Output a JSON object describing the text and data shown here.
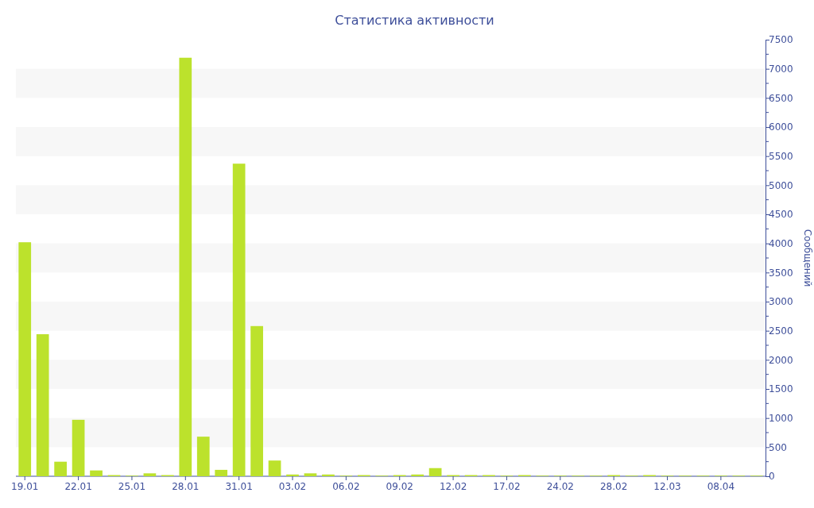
{
  "chart_data": {
    "type": "bar",
    "title": "Статистика активности",
    "y2label": "Сообщений",
    "categories": [
      "19.01",
      null,
      null,
      "22.01",
      null,
      null,
      "25.01",
      null,
      null,
      "28.01",
      null,
      null,
      "31.01",
      null,
      null,
      "03.02",
      null,
      null,
      "06.02",
      null,
      null,
      "09.02",
      null,
      null,
      "12.02",
      null,
      null,
      "17.02",
      null,
      null,
      "24.02",
      null,
      null,
      "28.02",
      null,
      null,
      "12.03",
      null,
      null,
      "08.04",
      null,
      null
    ],
    "series": [
      {
        "color": "#bce22c",
        "axis": "y2",
        "values": [
          4020,
          2440,
          250,
          970,
          100,
          20,
          10,
          50,
          20,
          7190,
          680,
          110,
          5370,
          2580,
          270,
          30,
          50,
          30,
          10,
          20,
          10,
          20,
          30,
          140,
          20,
          20,
          20,
          10,
          20,
          10,
          10,
          10,
          10,
          20,
          10,
          20,
          10,
          10,
          10,
          10,
          10,
          10
        ]
      }
    ],
    "y2lim": [
      0,
      7500
    ],
    "y2ticks": [
      0,
      500,
      1000,
      1500,
      2000,
      2500,
      3000,
      3500,
      4000,
      4500,
      5000,
      5500,
      6000,
      6500,
      7000,
      7500
    ],
    "bands": [
      {
        "axis": "y2",
        "from": 500,
        "to": 1000,
        "color": "#f7f7f7"
      },
      {
        "axis": "y2",
        "from": 1500,
        "to": 2000,
        "color": "#f7f7f7"
      },
      {
        "axis": "y2",
        "from": 2500,
        "to": 3000,
        "color": "#f7f7f7"
      },
      {
        "axis": "y2",
        "from": 3500,
        "to": 4000,
        "color": "#f7f7f7"
      },
      {
        "axis": "y2",
        "from": 4500,
        "to": 5000,
        "color": "#f7f7f7"
      },
      {
        "axis": "y2",
        "from": 5500,
        "to": 6000,
        "color": "#f7f7f7"
      },
      {
        "axis": "y2",
        "from": 6500,
        "to": 7000,
        "color": "#f7f7f7"
      }
    ],
    "grid": false
  }
}
